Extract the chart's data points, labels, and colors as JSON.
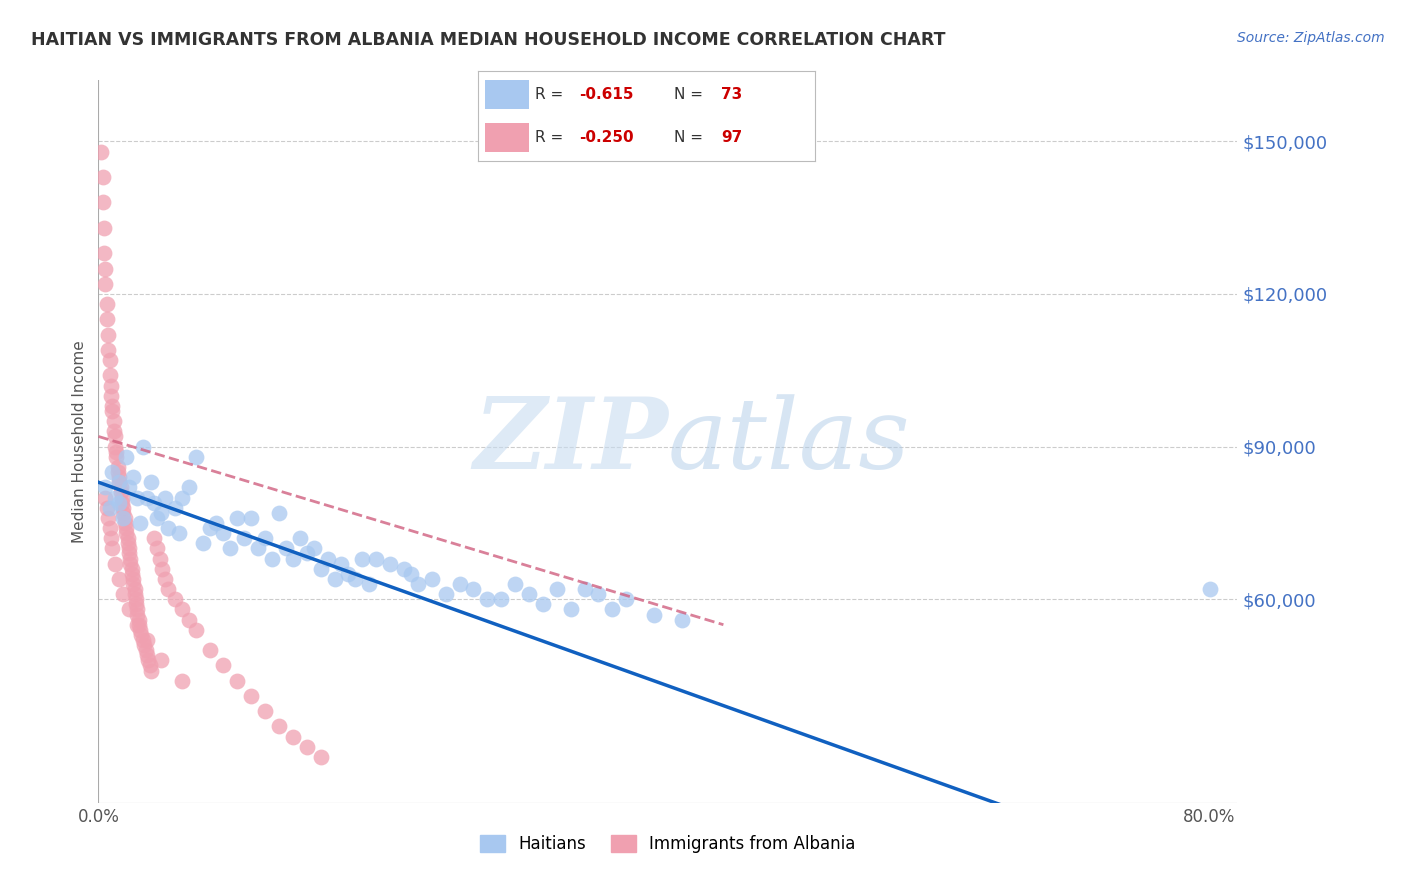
{
  "title": "HAITIAN VS IMMIGRANTS FROM ALBANIA MEDIAN HOUSEHOLD INCOME CORRELATION CHART",
  "source": "Source: ZipAtlas.com",
  "ylabel": "Median Household Income",
  "y_ticks": [
    60000,
    90000,
    120000,
    150000
  ],
  "y_tick_labels": [
    "$60,000",
    "$90,000",
    "$120,000",
    "$150,000"
  ],
  "ylim": [
    20000,
    162000
  ],
  "xlim": [
    0.0,
    0.82
  ],
  "blue_color": "#A8C8F0",
  "pink_color": "#F0A0B0",
  "trend_blue": "#1060C0",
  "trend_pink": "#D06080",
  "watermark_zip": "ZIP",
  "watermark_atlas": "atlas",
  "blue_scatter_x": [
    0.005,
    0.008,
    0.01,
    0.012,
    0.015,
    0.015,
    0.018,
    0.02,
    0.022,
    0.025,
    0.028,
    0.03,
    0.032,
    0.035,
    0.038,
    0.04,
    0.042,
    0.045,
    0.048,
    0.05,
    0.055,
    0.058,
    0.06,
    0.065,
    0.07,
    0.075,
    0.08,
    0.085,
    0.09,
    0.095,
    0.1,
    0.105,
    0.11,
    0.115,
    0.12,
    0.125,
    0.13,
    0.135,
    0.14,
    0.145,
    0.15,
    0.155,
    0.16,
    0.165,
    0.17,
    0.175,
    0.18,
    0.185,
    0.19,
    0.195,
    0.2,
    0.21,
    0.22,
    0.225,
    0.23,
    0.24,
    0.25,
    0.26,
    0.27,
    0.28,
    0.29,
    0.3,
    0.31,
    0.32,
    0.33,
    0.34,
    0.35,
    0.36,
    0.37,
    0.38,
    0.4,
    0.42,
    0.8
  ],
  "blue_scatter_y": [
    82000,
    78000,
    85000,
    80000,
    83000,
    79000,
    76000,
    88000,
    82000,
    84000,
    80000,
    75000,
    90000,
    80000,
    83000,
    79000,
    76000,
    77000,
    80000,
    74000,
    78000,
    73000,
    80000,
    82000,
    88000,
    71000,
    74000,
    75000,
    73000,
    70000,
    76000,
    72000,
    76000,
    70000,
    72000,
    68000,
    77000,
    70000,
    68000,
    72000,
    69000,
    70000,
    66000,
    68000,
    64000,
    67000,
    65000,
    64000,
    68000,
    63000,
    68000,
    67000,
    66000,
    65000,
    63000,
    64000,
    61000,
    63000,
    62000,
    60000,
    60000,
    63000,
    61000,
    59000,
    62000,
    58000,
    62000,
    61000,
    58000,
    60000,
    57000,
    56000,
    62000
  ],
  "pink_scatter_x": [
    0.002,
    0.003,
    0.003,
    0.004,
    0.004,
    0.005,
    0.005,
    0.006,
    0.006,
    0.007,
    0.007,
    0.008,
    0.008,
    0.009,
    0.009,
    0.01,
    0.01,
    0.011,
    0.011,
    0.012,
    0.012,
    0.013,
    0.013,
    0.014,
    0.014,
    0.015,
    0.015,
    0.016,
    0.016,
    0.017,
    0.017,
    0.018,
    0.018,
    0.019,
    0.019,
    0.02,
    0.02,
    0.021,
    0.021,
    0.022,
    0.022,
    0.023,
    0.023,
    0.024,
    0.024,
    0.025,
    0.025,
    0.026,
    0.026,
    0.027,
    0.027,
    0.028,
    0.028,
    0.029,
    0.029,
    0.03,
    0.031,
    0.032,
    0.033,
    0.034,
    0.035,
    0.036,
    0.037,
    0.038,
    0.04,
    0.042,
    0.044,
    0.046,
    0.048,
    0.05,
    0.055,
    0.06,
    0.065,
    0.07,
    0.08,
    0.09,
    0.1,
    0.11,
    0.12,
    0.13,
    0.14,
    0.15,
    0.16,
    0.005,
    0.006,
    0.007,
    0.008,
    0.009,
    0.01,
    0.012,
    0.015,
    0.018,
    0.022,
    0.028,
    0.035,
    0.045,
    0.06
  ],
  "pink_scatter_y": [
    148000,
    143000,
    138000,
    133000,
    128000,
    125000,
    122000,
    118000,
    115000,
    112000,
    109000,
    107000,
    104000,
    102000,
    100000,
    98000,
    97000,
    95000,
    93000,
    92000,
    90000,
    89000,
    88000,
    86000,
    85000,
    84000,
    83000,
    82000,
    81000,
    80000,
    79000,
    78000,
    77000,
    76000,
    75000,
    74000,
    73000,
    72000,
    71000,
    70000,
    69000,
    68000,
    67000,
    66000,
    65000,
    64000,
    63000,
    62000,
    61000,
    60000,
    59000,
    58000,
    57000,
    56000,
    55000,
    54000,
    53000,
    52000,
    51000,
    50000,
    49000,
    48000,
    47000,
    46000,
    72000,
    70000,
    68000,
    66000,
    64000,
    62000,
    60000,
    58000,
    56000,
    54000,
    50000,
    47000,
    44000,
    41000,
    38000,
    35000,
    33000,
    31000,
    29000,
    80000,
    78000,
    76000,
    74000,
    72000,
    70000,
    67000,
    64000,
    61000,
    58000,
    55000,
    52000,
    48000,
    44000
  ]
}
